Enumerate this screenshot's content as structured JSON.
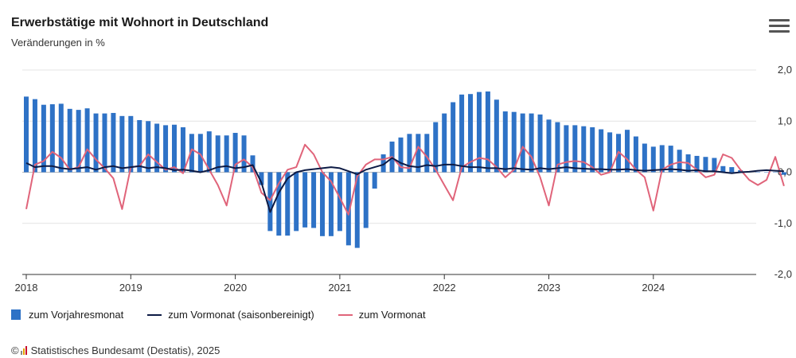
{
  "header": {
    "title": "Erwerbstätige mit Wohnort in Deutschland",
    "subtitle": "Veränderungen in %",
    "menu_icon": "hamburger-menu-icon"
  },
  "legend": {
    "bar_label": "zum Vorjahresmonat",
    "sa_label": "zum Vormonat (saisonbereinigt)",
    "mom_label": "zum Vormonat"
  },
  "footer": {
    "copyright": "©",
    "source": "Statistisches Bundesamt (Destatis), 2025"
  },
  "colors": {
    "bar": "#2e72c6",
    "sa_line": "#0d1b45",
    "mom_line": "#e0647a",
    "grid": "#e4e4e4"
  },
  "chart_data": {
    "type": "bar",
    "x_ticks": [
      "2018",
      "2019",
      "2020",
      "2021",
      "2022",
      "2023",
      "2024"
    ],
    "y_ticks": [
      "2,0",
      "1,0",
      "0,0",
      "-1,0",
      "-2,0"
    ],
    "ylim": [
      -2,
      2
    ],
    "y_axis_position": "right",
    "grid": true,
    "legend_position": "bottom-left",
    "start_month": "2018-01",
    "series": [
      {
        "name": "zum Vorjahresmonat",
        "type": "bar",
        "values": [
          1.48,
          1.43,
          1.32,
          1.33,
          1.34,
          1.24,
          1.22,
          1.25,
          1.15,
          1.15,
          1.16,
          1.1,
          1.1,
          1.02,
          1.0,
          0.95,
          0.92,
          0.93,
          0.88,
          0.75,
          0.75,
          0.8,
          0.72,
          0.72,
          0.77,
          0.72,
          0.33,
          -0.25,
          -1.15,
          -1.24,
          -1.24,
          -1.15,
          -1.08,
          -1.09,
          -1.25,
          -1.25,
          -1.15,
          -1.43,
          -1.48,
          -1.09,
          -0.32,
          0.35,
          0.6,
          0.68,
          0.75,
          0.75,
          0.75,
          0.98,
          1.15,
          1.37,
          1.52,
          1.53,
          1.57,
          1.58,
          1.42,
          1.19,
          1.18,
          1.15,
          1.15,
          1.13,
          1.03,
          0.98,
          0.92,
          0.92,
          0.9,
          0.88,
          0.84,
          0.78,
          0.75,
          0.83,
          0.7,
          0.56,
          0.5,
          0.53,
          0.52,
          0.44,
          0.35,
          0.32,
          0.3,
          0.28,
          0.12,
          0.1,
          0.04,
          0.02,
          0.0,
          0.0,
          0.0,
          -0.05
        ]
      },
      {
        "name": "zum Vormonat (saisonbereinigt)",
        "type": "line",
        "values": [
          0.18,
          0.1,
          0.12,
          0.12,
          0.08,
          0.06,
          0.08,
          0.1,
          0.05,
          0.1,
          0.12,
          0.08,
          0.1,
          0.12,
          0.08,
          0.1,
          0.08,
          0.04,
          0.05,
          0.03,
          0.0,
          0.04,
          0.1,
          0.12,
          0.08,
          0.1,
          0.14,
          -0.2,
          -0.78,
          -0.4,
          -0.12,
          0.0,
          0.04,
          0.06,
          0.08,
          0.1,
          0.08,
          0.02,
          -0.04,
          0.05,
          0.1,
          0.15,
          0.28,
          0.18,
          0.12,
          0.1,
          0.14,
          0.12,
          0.15,
          0.15,
          0.12,
          0.1,
          0.1,
          0.08,
          0.08,
          0.06,
          0.08,
          0.06,
          0.05,
          0.08,
          0.06,
          0.08,
          0.1,
          0.08,
          0.07,
          0.06,
          0.06,
          0.05,
          0.05,
          0.06,
          0.04,
          0.03,
          0.04,
          0.05,
          0.06,
          0.05,
          0.03,
          0.04,
          0.02,
          0.02,
          0.0,
          -0.02,
          0.0,
          0.01,
          0.03,
          0.04,
          0.03,
          0.02
        ]
      },
      {
        "name": "zum Vormonat",
        "type": "line",
        "values": [
          -0.72,
          0.15,
          0.22,
          0.4,
          0.28,
          0.05,
          0.1,
          0.45,
          0.25,
          0.08,
          -0.12,
          -0.72,
          0.1,
          0.12,
          0.35,
          0.2,
          0.05,
          0.1,
          -0.02,
          0.45,
          0.35,
          0.05,
          -0.25,
          -0.65,
          0.15,
          0.25,
          0.1,
          -0.4,
          -0.55,
          -0.22,
          0.05,
          0.1,
          0.54,
          0.35,
          0.0,
          -0.18,
          -0.5,
          -0.83,
          -0.08,
          0.15,
          0.25,
          0.25,
          0.3,
          0.1,
          0.08,
          0.5,
          0.3,
          0.05,
          -0.25,
          -0.55,
          0.1,
          0.2,
          0.28,
          0.25,
          0.1,
          -0.1,
          0.05,
          0.5,
          0.3,
          -0.1,
          -0.65,
          0.15,
          0.2,
          0.22,
          0.2,
          0.1,
          -0.05,
          0.0,
          0.4,
          0.25,
          0.05,
          -0.1,
          -0.75,
          0.05,
          0.15,
          0.2,
          0.18,
          0.05,
          -0.1,
          -0.05,
          0.35,
          0.28,
          0.05,
          -0.15,
          -0.25,
          -0.15,
          0.3,
          -0.27
        ]
      }
    ]
  }
}
